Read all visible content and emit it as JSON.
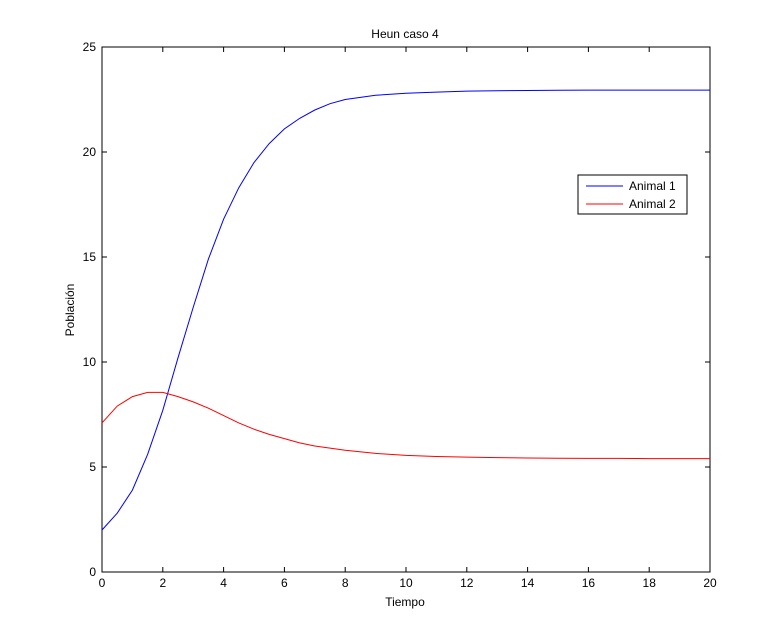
{
  "chart_data": {
    "type": "line",
    "title": "Heun caso 4",
    "xlabel": "Tiempo",
    "ylabel": "Población",
    "xlim": [
      0,
      20
    ],
    "ylim": [
      0,
      25
    ],
    "xticks": [
      "0",
      "2",
      "4",
      "6",
      "8",
      "10",
      "12",
      "14",
      "16",
      "18",
      "20"
    ],
    "yticks": [
      "0",
      "5",
      "10",
      "15",
      "20",
      "25"
    ],
    "grid": false,
    "legend_position": "upper-right",
    "series": [
      {
        "name": "Animal 1",
        "color": "#0000ff",
        "x": [
          0,
          0.5,
          1,
          1.5,
          2,
          2.5,
          3,
          3.5,
          4,
          4.5,
          5,
          5.5,
          6,
          6.5,
          7,
          7.5,
          8,
          9,
          10,
          11,
          12,
          13,
          14,
          15,
          16,
          17,
          18,
          19,
          20
        ],
        "y": [
          2.0,
          2.8,
          3.9,
          5.6,
          7.7,
          10.2,
          12.6,
          14.9,
          16.8,
          18.3,
          19.5,
          20.4,
          21.1,
          21.6,
          22.0,
          22.3,
          22.5,
          22.7,
          22.8,
          22.85,
          22.9,
          22.92,
          22.93,
          22.94,
          22.95,
          22.95,
          22.95,
          22.95,
          22.95
        ]
      },
      {
        "name": "Animal 2",
        "color": "#ff0000",
        "x": [
          0,
          0.5,
          1,
          1.5,
          2,
          2.5,
          3,
          3.5,
          4,
          4.5,
          5,
          5.5,
          6,
          6.5,
          7,
          7.5,
          8,
          9,
          10,
          11,
          12,
          13,
          14,
          15,
          16,
          17,
          18,
          19,
          20
        ],
        "y": [
          7.1,
          7.9,
          8.35,
          8.55,
          8.55,
          8.35,
          8.1,
          7.8,
          7.45,
          7.1,
          6.8,
          6.55,
          6.35,
          6.15,
          6.0,
          5.9,
          5.8,
          5.65,
          5.55,
          5.5,
          5.47,
          5.45,
          5.43,
          5.42,
          5.41,
          5.41,
          5.4,
          5.4,
          5.4
        ]
      }
    ]
  }
}
